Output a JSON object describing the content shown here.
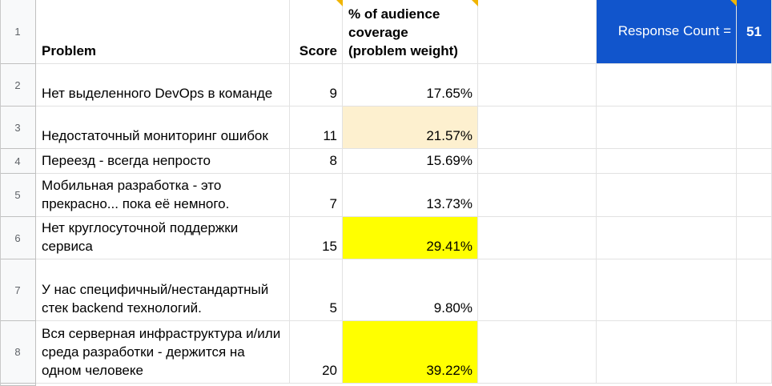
{
  "rows": [
    "1",
    "2",
    "3",
    "4",
    "5",
    "6",
    "7",
    "8"
  ],
  "headers": {
    "problem": "Problem",
    "score": "Score",
    "coverage_line1": "% of audience",
    "coverage_line2": "coverage",
    "coverage_line3": "(problem weight)"
  },
  "response": {
    "label": "Response Count =",
    "value": "51"
  },
  "data": [
    {
      "problem": "Нет выделенного DevOps в команде",
      "score": "9",
      "coverage": "17.65%"
    },
    {
      "problem": "Недостаточный мониторинг ошибок",
      "score": "11",
      "coverage": "21.57%"
    },
    {
      "problem": "Переезд - всегда непросто",
      "score": "8",
      "coverage": "15.69%"
    },
    {
      "problem": "Мобильная разработка - это прекрасно... пока её немного.",
      "score": "7",
      "coverage": "13.73%"
    },
    {
      "problem": "Нет круглосуточной поддержки сервиса",
      "score": "15",
      "coverage": "29.41%"
    },
    {
      "problem": "У нас специфичный/нестандартный стек backend технологий.",
      "score": "5",
      "coverage": "9.80%"
    },
    {
      "problem": "Вся серверная инфраструктура и/или среда разработки - держится на одном человеке",
      "score": "20",
      "coverage": "39.22%"
    }
  ],
  "colors": {
    "highlight_light": "#fdf0cf",
    "highlight_yellow": "#ffff00",
    "response_blue": "#1155cc"
  }
}
